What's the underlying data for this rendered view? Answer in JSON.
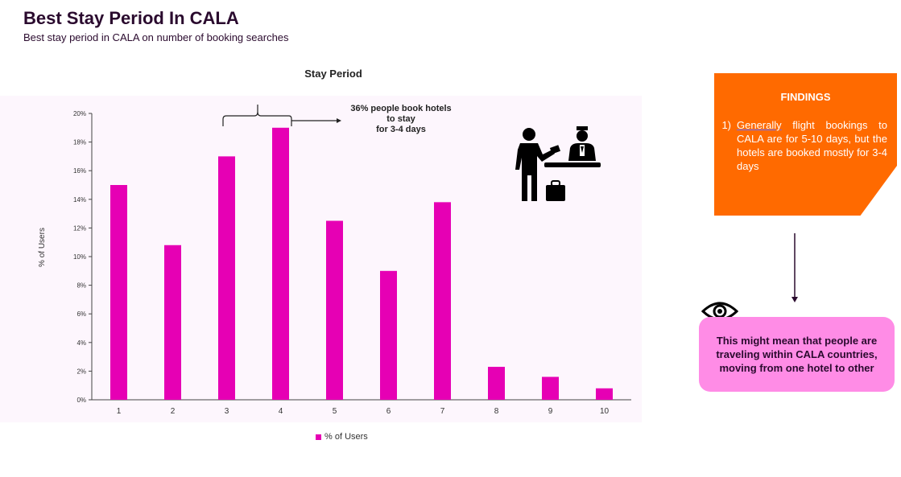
{
  "header": {
    "title": "Best Stay Period In CALA",
    "subtitle": "Best stay period in CALA on number of booking searches"
  },
  "annotation": {
    "text": "36% people book hotels\nto stay\nfor 3-4 days"
  },
  "findings": {
    "title": "FINDINGS",
    "number": "1)",
    "underlined_word": "Generally",
    "text": " flight bookings to CALA  are for 5-10 days, but the hotels are booked mostly for 3-4 days"
  },
  "conclusion": {
    "text": "This might mean that people are traveling within CALA countries, moving from one hotel to other"
  },
  "icons": {
    "eye": "eye-icon",
    "hotel": "hotel-reception-icon",
    "arrow": "arrow-down-icon"
  },
  "colors": {
    "bar": "#e600b4",
    "findings_bg": "#ff6a00",
    "conclusion_bg": "#ff8ce6",
    "title": "#2a0a2e"
  },
  "chart_data": {
    "type": "bar",
    "title": "Stay Period",
    "xlabel": "",
    "ylabel": "% of Users",
    "categories": [
      "1",
      "2",
      "3",
      "4",
      "5",
      "6",
      "7",
      "8",
      "9",
      "10"
    ],
    "series": [
      {
        "name": "% of Users",
        "values": [
          15,
          10.8,
          17,
          19,
          12.5,
          9,
          13.8,
          2.3,
          1.6,
          0.8
        ]
      }
    ],
    "ylim": [
      0,
      20
    ],
    "yticks": [
      "0%",
      "2%",
      "4%",
      "6%",
      "8%",
      "10%",
      "12%",
      "14%",
      "16%",
      "18%",
      "20%"
    ],
    "legend": "bottom",
    "grid": false
  }
}
